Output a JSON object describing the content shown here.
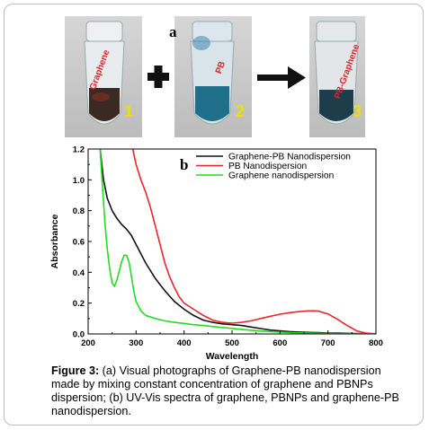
{
  "panel_a": {
    "letter": "a",
    "tubes": [
      {
        "number": "1",
        "label": "Graphene"
      },
      {
        "number": "2",
        "label": "PB"
      },
      {
        "number": "3",
        "label": "PB-Graphene"
      }
    ],
    "operator_plus": "plus-symbol",
    "operator_arrow": "arrow-right-symbol"
  },
  "panel_b": {
    "letter": "b"
  },
  "chart_data": {
    "type": "line",
    "xlabel": "Wavelength",
    "ylabel": "Absorbance",
    "xlim": [
      200,
      800
    ],
    "ylim": [
      0.0,
      1.2
    ],
    "x_ticks": [
      "200",
      "300",
      "400",
      "500",
      "600",
      "700",
      "800"
    ],
    "y_ticks": [
      "0.0",
      "0.2",
      "0.4",
      "0.6",
      "0.8",
      "1.0",
      "1.2"
    ],
    "grid": false,
    "legend_position": "top-right",
    "series": [
      {
        "name": "Graphene-PB Nanodispersion",
        "color": "#111111",
        "x": [
          225,
          232,
          240,
          250,
          260,
          270,
          280,
          290,
          300,
          320,
          340,
          360,
          380,
          400,
          420,
          440,
          460,
          480,
          500,
          520,
          540,
          560,
          580,
          600,
          620,
          640,
          660,
          680,
          700,
          720,
          740,
          760,
          780,
          800
        ],
        "y": [
          1.2,
          1.0,
          0.88,
          0.8,
          0.75,
          0.71,
          0.68,
          0.64,
          0.58,
          0.46,
          0.36,
          0.28,
          0.21,
          0.16,
          0.12,
          0.09,
          0.075,
          0.065,
          0.06,
          0.055,
          0.045,
          0.035,
          0.025,
          0.02,
          0.015,
          0.012,
          0.01,
          0.008,
          0.006,
          0.005,
          0.004,
          0.003,
          0.002,
          0.002
        ]
      },
      {
        "name": "PB Nanodispersion",
        "color": "#e8262a",
        "x": [
          293,
          300,
          310,
          320,
          330,
          340,
          350,
          360,
          370,
          380,
          390,
          400,
          420,
          440,
          460,
          480,
          500,
          520,
          540,
          560,
          580,
          600,
          620,
          640,
          660,
          670,
          680,
          700,
          720,
          740,
          760,
          780,
          800
        ],
        "y": [
          1.2,
          1.1,
          1.0,
          0.92,
          0.82,
          0.7,
          0.58,
          0.46,
          0.37,
          0.3,
          0.24,
          0.2,
          0.16,
          0.12,
          0.09,
          0.075,
          0.07,
          0.075,
          0.085,
          0.1,
          0.115,
          0.128,
          0.138,
          0.145,
          0.15,
          0.15,
          0.148,
          0.13,
          0.095,
          0.055,
          0.02,
          0.005,
          0.0
        ]
      },
      {
        "name": "Graphene nanodispersion",
        "color": "#22dd22",
        "x": [
          225,
          230,
          235,
          240,
          245,
          250,
          255,
          260,
          265,
          270,
          275,
          280,
          285,
          290,
          295,
          300,
          310,
          320,
          340,
          360,
          380,
          400,
          420,
          440,
          460,
          480,
          500,
          520,
          540,
          560,
          580,
          600,
          620,
          640,
          660,
          680,
          700,
          720,
          740,
          760,
          780,
          800
        ],
        "y": [
          1.2,
          0.95,
          0.72,
          0.55,
          0.42,
          0.33,
          0.31,
          0.35,
          0.41,
          0.47,
          0.51,
          0.51,
          0.47,
          0.38,
          0.28,
          0.21,
          0.15,
          0.12,
          0.1,
          0.085,
          0.075,
          0.068,
          0.06,
          0.055,
          0.048,
          0.042,
          0.036,
          0.03,
          0.024,
          0.019,
          0.015,
          0.012,
          0.009,
          0.007,
          0.005,
          0.004,
          0.003,
          0.002,
          0.002,
          0.001,
          0.001,
          0.001
        ]
      }
    ]
  },
  "caption": {
    "label": "Figure 3:",
    "text": " (a) Visual photographs of Graphene-PB nanodispersion made by mixing constant concentration of graphene and PBNPs dispersion; (b) UV-Vis spectra of graphene, PBNPs and graphene-PB nanodispersion."
  }
}
